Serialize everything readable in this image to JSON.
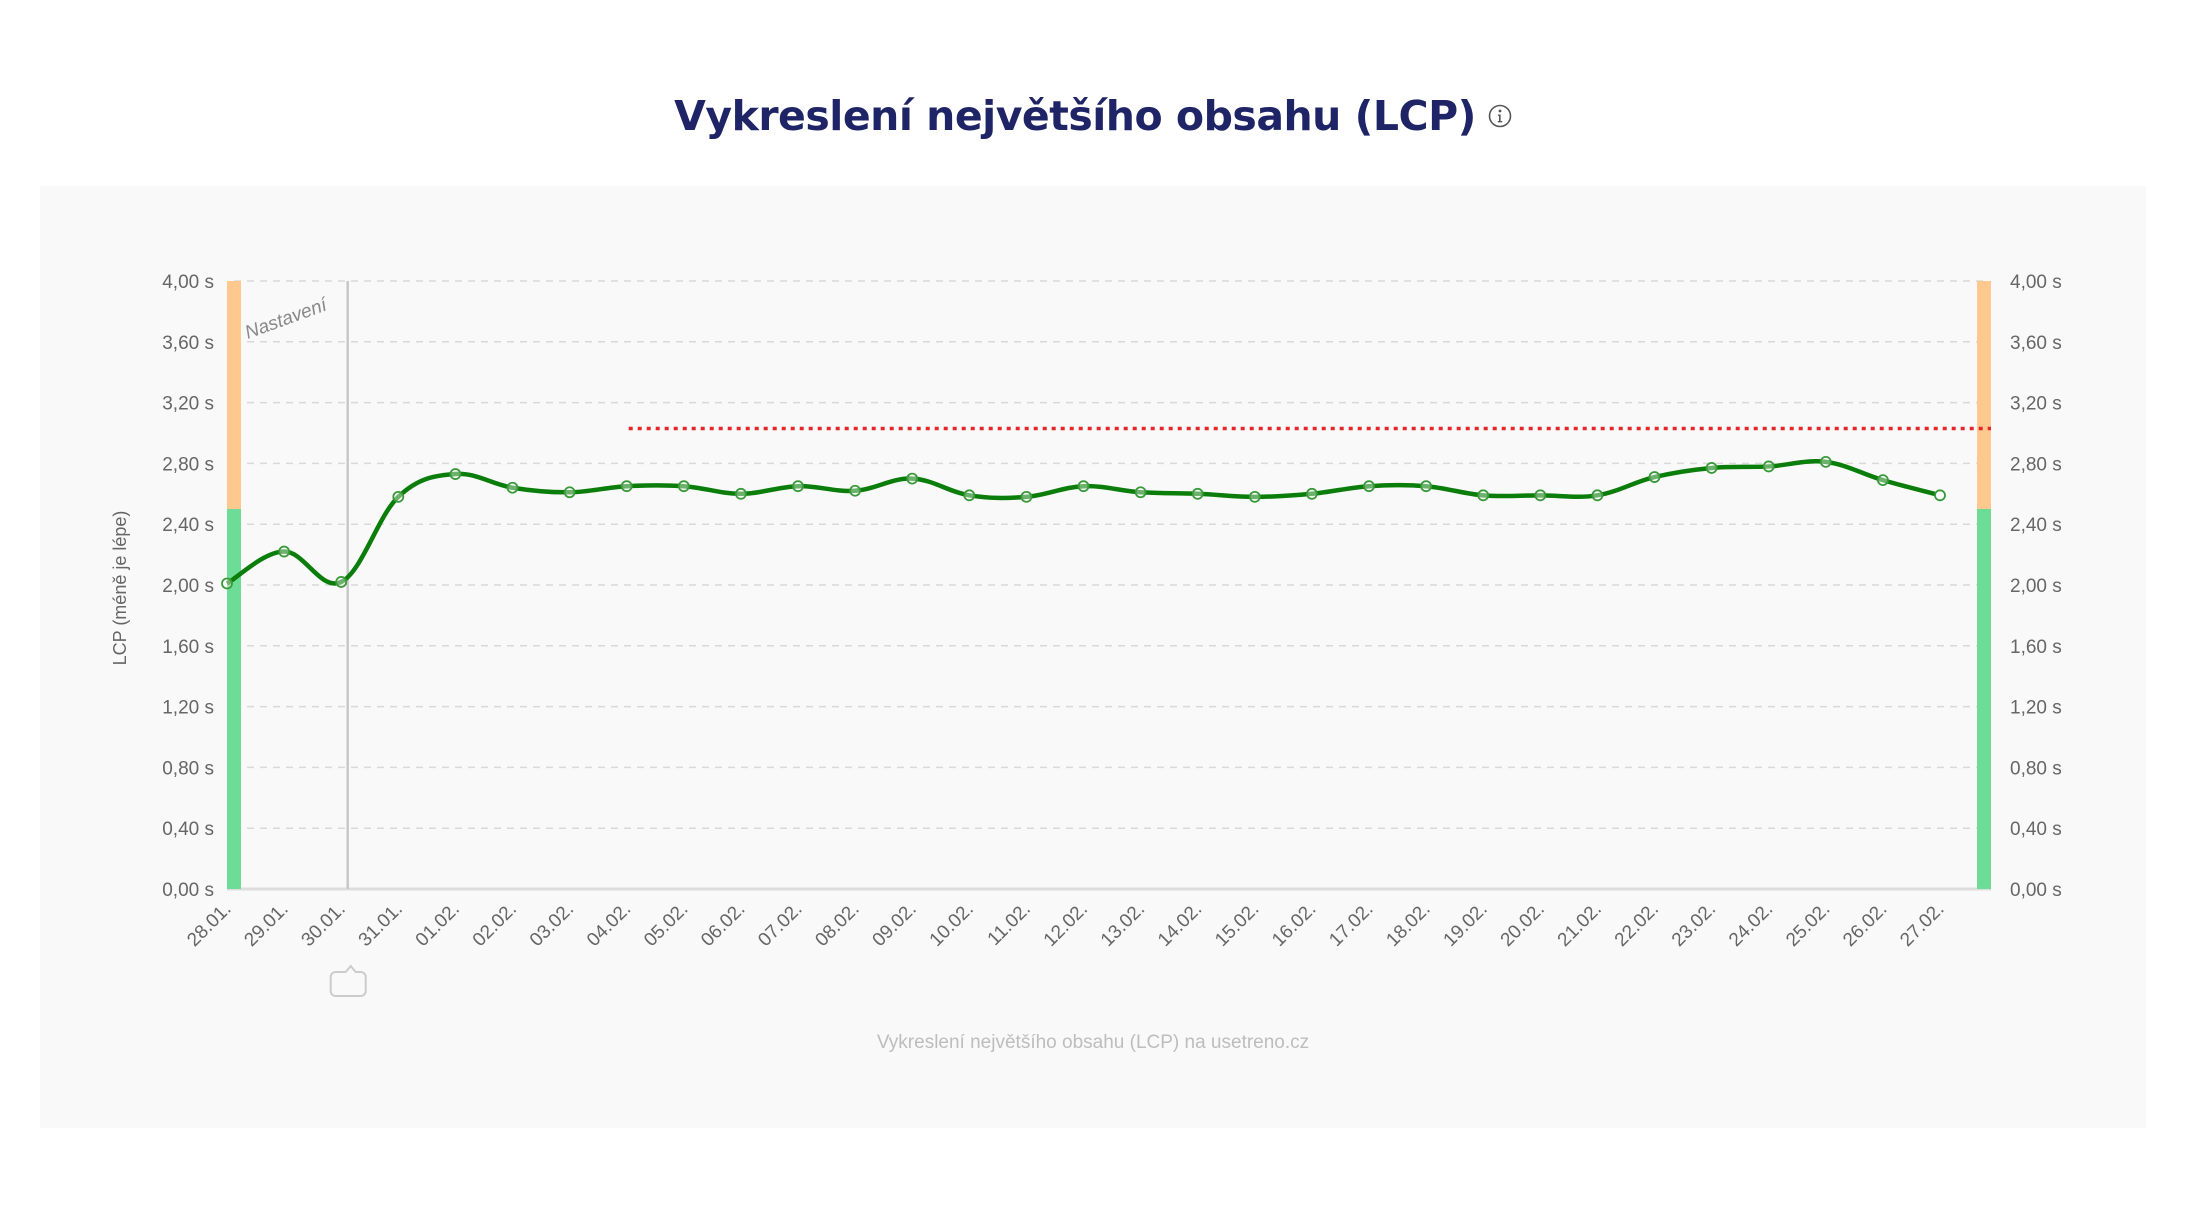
{
  "header": {
    "title": "Vykreslení největšího obsahu (LCP)",
    "info_icon": "info-circle-icon"
  },
  "footer": {
    "credit": "Vykreslení největšího obsahu (LCP) na usetreno.cz"
  },
  "colors": {
    "title": "#1e2466",
    "line": "#0a7d0a",
    "good_band": "#6ddc97",
    "needs_improvement_band": "#ffc88e",
    "target_line": "#e8252b",
    "grid": "#d9d9d9",
    "annotation_line": "#c8c8c8"
  },
  "chart_data": {
    "type": "line",
    "title": "Vykreslení největšího obsahu (LCP)",
    "xlabel": "",
    "ylabel": "LCP (méně je lépe)",
    "ylim": [
      0,
      4
    ],
    "yticks": [
      "0,00 s",
      "0,40 s",
      "0,80 s",
      "1,20 s",
      "1,60 s",
      "2,00 s",
      "2,40 s",
      "2,80 s",
      "3,20 s",
      "3,60 s",
      "4,00 s"
    ],
    "y_axis_right_mirrored": true,
    "grid": true,
    "legend": "none",
    "categories": [
      "28.01.",
      "29.01.",
      "30.01.",
      "31.01.",
      "01.02.",
      "02.02.",
      "03.02.",
      "04.02.",
      "05.02.",
      "06.02.",
      "07.02.",
      "08.02.",
      "09.02.",
      "10.02.",
      "11.02.",
      "12.02.",
      "13.02.",
      "14.02.",
      "15.02.",
      "16.02.",
      "17.02.",
      "18.02.",
      "19.02.",
      "20.02.",
      "21.02.",
      "22.02.",
      "23.02.",
      "24.02.",
      "25.02.",
      "26.02.",
      "27.02."
    ],
    "series": [
      {
        "name": "LCP",
        "values": [
          2.01,
          2.22,
          2.02,
          2.58,
          2.73,
          2.64,
          2.61,
          2.65,
          2.65,
          2.6,
          2.65,
          2.62,
          2.7,
          2.59,
          2.58,
          2.65,
          2.61,
          2.6,
          2.58,
          2.6,
          2.65,
          2.65,
          2.59,
          2.59,
          2.59,
          2.71,
          2.77,
          2.78,
          2.81,
          2.69,
          2.59
        ]
      }
    ],
    "thresholds": {
      "good_max": 2.5,
      "band_max": 4.0
    },
    "target_line": {
      "value": 3.03,
      "from_category": "04.02.",
      "style": "dotted",
      "color": "#e8252b"
    },
    "annotations": [
      {
        "category": "30.01.",
        "label": "Nastavení",
        "type": "vertical-line",
        "marker": "speech-bubble-icon"
      }
    ]
  }
}
